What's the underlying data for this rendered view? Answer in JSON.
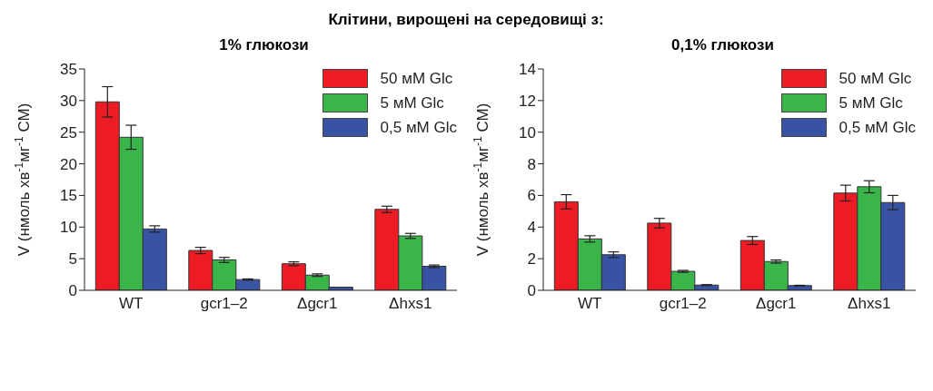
{
  "chart_data": [
    {
      "type": "bar",
      "title": "1% глюкози",
      "annotations": [
        "Клітини, вирощені на середовищі з:"
      ],
      "ylabel": "V (нмоль хв$^{-1}$мг$^{-1}$ СМ)",
      "categories": [
        "WT",
        "gcr1–2",
        "Δgcr1",
        "Δhxs1"
      ],
      "series": [
        {
          "name": "50 мМ Glc",
          "color": "#ed1c24",
          "values": [
            29.8,
            6.3,
            4.2,
            12.8
          ],
          "errors": [
            2.4,
            0.5,
            0.3,
            0.5
          ]
        },
        {
          "name": "5 мМ Glc",
          "color": "#39b54a",
          "values": [
            24.2,
            4.8,
            2.4,
            8.6
          ],
          "errors": [
            1.9,
            0.4,
            0.2,
            0.4
          ]
        },
        {
          "name": "0,5 мМ Glc",
          "color": "#3953a4",
          "values": [
            9.7,
            1.7,
            0.5,
            3.8
          ],
          "errors": [
            0.5,
            0.1,
            null,
            0.2
          ]
        }
      ],
      "ylim": [
        0,
        35
      ],
      "yticks": [
        0,
        5,
        10,
        15,
        20,
        25,
        30,
        35
      ],
      "legend": "top right"
    },
    {
      "type": "bar",
      "title": "0,1% глюкози",
      "ylabel": "V (нмоль хв$^{-1}$мг$^{-1}$ СМ)",
      "categories": [
        "WT",
        "gcr1–2",
        "Δgcr1",
        "Δhxs1"
      ],
      "series": [
        {
          "name": "50 мМ Glc",
          "color": "#ed1c24",
          "values": [
            5.6,
            4.25,
            3.15,
            6.15
          ],
          "errors": [
            0.45,
            0.3,
            0.25,
            0.5
          ]
        },
        {
          "name": "5 мМ Glc",
          "color": "#39b54a",
          "values": [
            3.25,
            1.2,
            1.82,
            6.55
          ],
          "errors": [
            0.2,
            0.06,
            0.1,
            0.38
          ]
        },
        {
          "name": "0,5 мМ Glc",
          "color": "#3953a4",
          "values": [
            2.25,
            0.33,
            0.3,
            5.55
          ],
          "errors": [
            0.18,
            0.03,
            0.02,
            0.45
          ]
        }
      ],
      "ylim": [
        0,
        14
      ],
      "yticks": [
        0,
        2,
        4,
        6,
        8,
        10,
        12,
        14
      ],
      "legend": "top right"
    }
  ]
}
